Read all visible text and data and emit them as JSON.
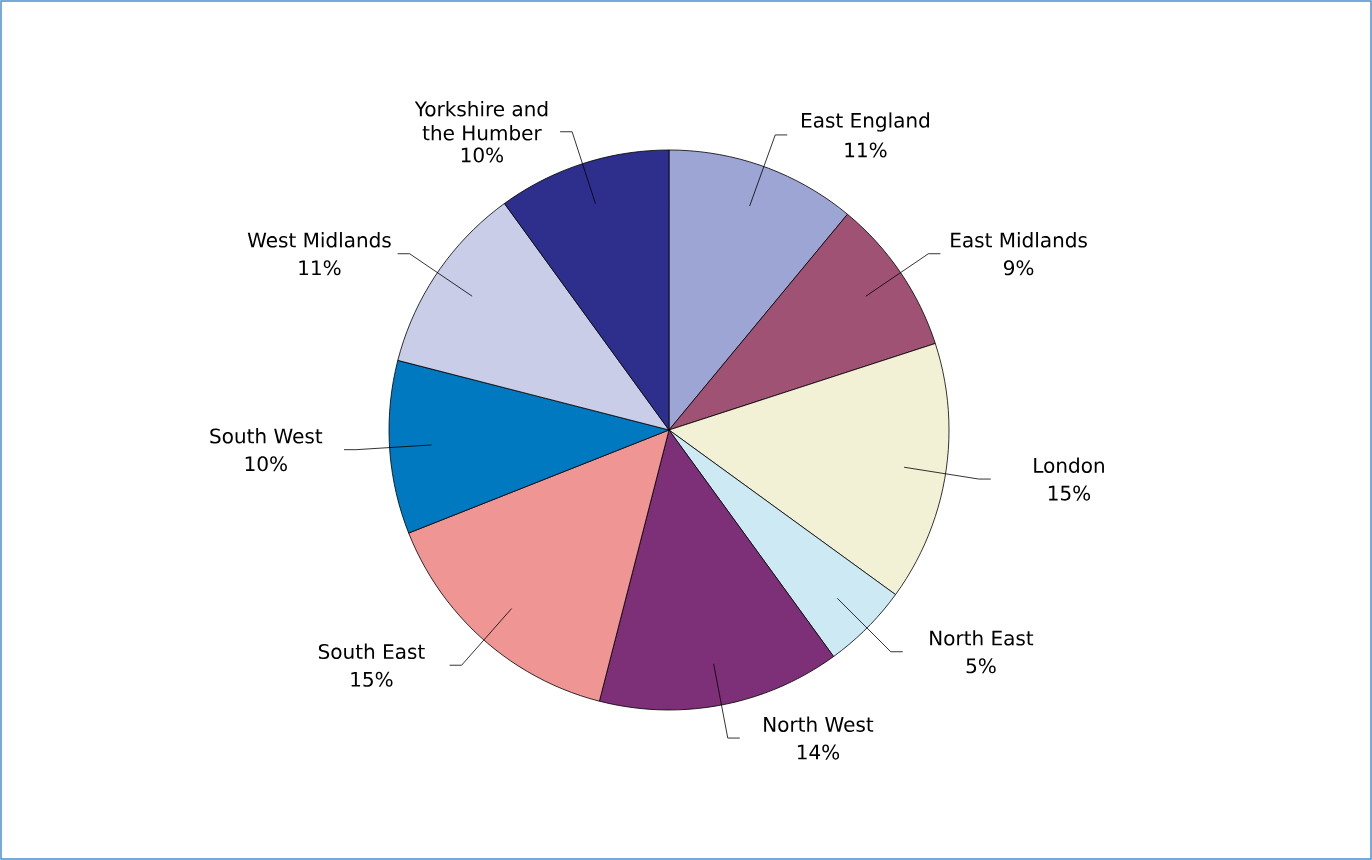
{
  "chart_data": {
    "type": "pie",
    "categories": [
      "East England",
      "East Midlands",
      "London",
      "North East",
      "North West",
      "South East",
      "South West",
      "West Midlands",
      "Yorkshire and the Humber"
    ],
    "values": [
      11,
      9,
      15,
      5,
      14,
      15,
      10,
      11,
      10
    ],
    "value_labels": [
      "11%",
      "9%",
      "15%",
      "5%",
      "14%",
      "15%",
      "10%",
      "11%",
      "10%"
    ],
    "colors": [
      "#9da5d5",
      "#a05274",
      "#f3f1d5",
      "#cde9f3",
      "#7d3077",
      "#ef9694",
      "#0079c1",
      "#c9cde8",
      "#2e2f8c"
    ]
  }
}
